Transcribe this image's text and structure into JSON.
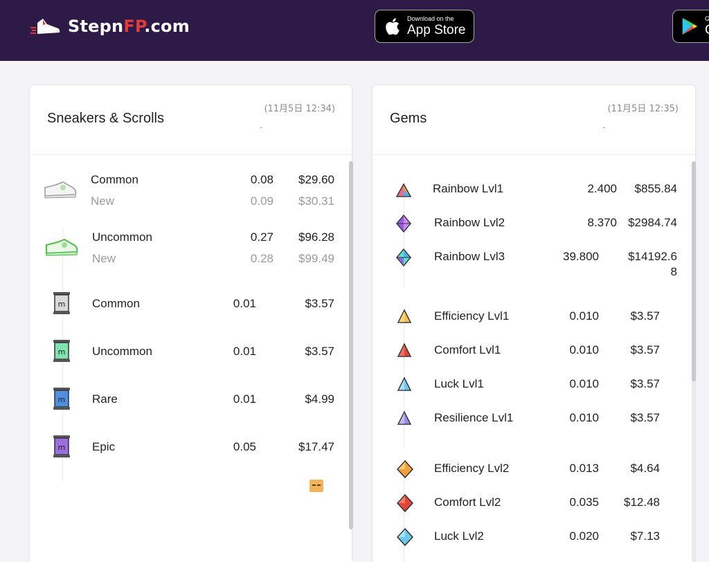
{
  "brand": {
    "name_part1": "Stepn",
    "name_part2": "FP",
    "name_part3": ".com",
    "accent_color": "#e23b3b",
    "header_bg": "#2d1a47"
  },
  "app_store": {
    "small": "Download on the",
    "big": "App Store"
  },
  "google_play": {
    "small": "GE",
    "big": "G"
  },
  "sneakers": {
    "title": "Sneakers & Scrolls",
    "timestamp": "(11月5日 12:34)",
    "dash": "-",
    "rows": [
      {
        "name": "Common",
        "sub": "New",
        "price": "0.08",
        "usd": "$29.60",
        "sub_price": "0.09",
        "sub_usd": "$30.31",
        "icon": "sneaker-common-icon"
      },
      {
        "name": "Uncommon",
        "sub": "New",
        "price": "0.27",
        "usd": "$96.28",
        "sub_price": "0.28",
        "sub_usd": "$99.49",
        "icon": "sneaker-uncommon-icon"
      },
      {
        "name": "Common",
        "price": "0.01",
        "usd": "$3.57",
        "icon": "scroll-common-icon",
        "color": "#d9d9d9"
      },
      {
        "name": "Uncommon",
        "price": "0.01",
        "usd": "$3.57",
        "icon": "scroll-uncommon-icon",
        "color": "#7fe3b0"
      },
      {
        "name": "Rare",
        "price": "0.01",
        "usd": "$4.99",
        "icon": "scroll-rare-icon",
        "color": "#4f8fe0"
      },
      {
        "name": "Epic",
        "price": "0.05",
        "usd": "$17.47",
        "icon": "scroll-epic-icon",
        "color": "#9b6fe0"
      }
    ]
  },
  "gems": {
    "title": "Gems",
    "timestamp": "(11月5日 12:35)",
    "dash": "-",
    "rows": [
      {
        "name": "Rainbow Lvl1",
        "price": "2.400",
        "usd": "$855.84",
        "icon": "rainbow-gem-lvl1-icon"
      },
      {
        "name": "Rainbow Lvl2",
        "price": "8.370",
        "usd": "$2984.74",
        "icon": "rainbow-gem-lvl2-icon"
      },
      {
        "name": "Rainbow Lvl3",
        "price": "39.800",
        "usd_line1": "$14192.6",
        "usd_line2": "8",
        "icon": "rainbow-gem-lvl3-icon"
      },
      {
        "name": "Efficiency Lvl1",
        "price": "0.010",
        "usd": "$3.57",
        "icon": "efficiency-gem-lvl1-icon",
        "color": "#f2c14e"
      },
      {
        "name": "Comfort Lvl1",
        "price": "0.010",
        "usd": "$3.57",
        "icon": "comfort-gem-lvl1-icon",
        "color": "#e2453a"
      },
      {
        "name": "Luck Lvl1",
        "price": "0.010",
        "usd": "$3.57",
        "icon": "luck-gem-lvl1-icon",
        "color": "#6cc7ec"
      },
      {
        "name": "Resilience Lvl1",
        "price": "0.010",
        "usd": "$3.57",
        "icon": "resilience-gem-lvl1-icon",
        "color": "#9a8fe3"
      },
      {
        "name": "Efficiency Lvl2",
        "price": "0.013",
        "usd": "$4.64",
        "icon": "efficiency-gem-lvl2-icon",
        "color": "#f2a13e"
      },
      {
        "name": "Comfort Lvl2",
        "price": "0.035",
        "usd": "$12.48",
        "icon": "comfort-gem-lvl2-icon",
        "color": "#e2453a"
      },
      {
        "name": "Luck Lvl2",
        "price": "0.020",
        "usd": "$7.13",
        "icon": "luck-gem-lvl2-icon",
        "color": "#6cc7ec"
      }
    ]
  }
}
